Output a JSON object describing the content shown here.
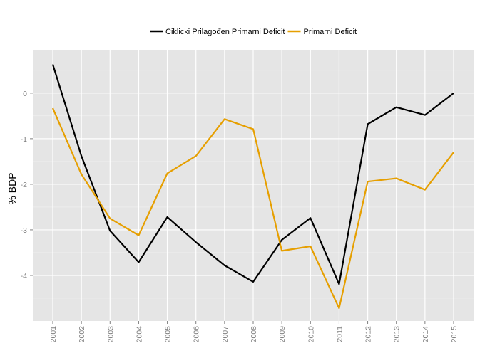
{
  "chart_data": {
    "type": "line",
    "title": "",
    "xlabel": "",
    "ylabel": "% BDP",
    "x": [
      "2001",
      "2002",
      "2003",
      "2004",
      "2005",
      "2006",
      "2007",
      "2008",
      "2009",
      "2010",
      "2011",
      "2012",
      "2013",
      "2014",
      "2015"
    ],
    "series": [
      {
        "name": "Ciklicki Prilagođen Primarni Deficit",
        "color": "#000000",
        "values": [
          0.63,
          -1.38,
          -3.02,
          -3.71,
          -2.72,
          -3.27,
          -3.78,
          -4.14,
          -3.22,
          -2.74,
          -4.19,
          -0.68,
          -0.31,
          -0.48,
          0.0
        ]
      },
      {
        "name": "Primarni Deficit",
        "color": "#E69F00",
        "values": [
          -0.33,
          -1.78,
          -2.75,
          -3.12,
          -1.76,
          -1.38,
          -0.57,
          -0.79,
          -3.46,
          -3.36,
          -4.72,
          -1.94,
          -1.87,
          -2.12,
          -1.3
        ]
      }
    ],
    "yticks": [
      0,
      -1,
      -2,
      -3,
      -4
    ],
    "ylim": [
      -5.0,
      0.95
    ],
    "grid": true,
    "legend_position": "top"
  }
}
